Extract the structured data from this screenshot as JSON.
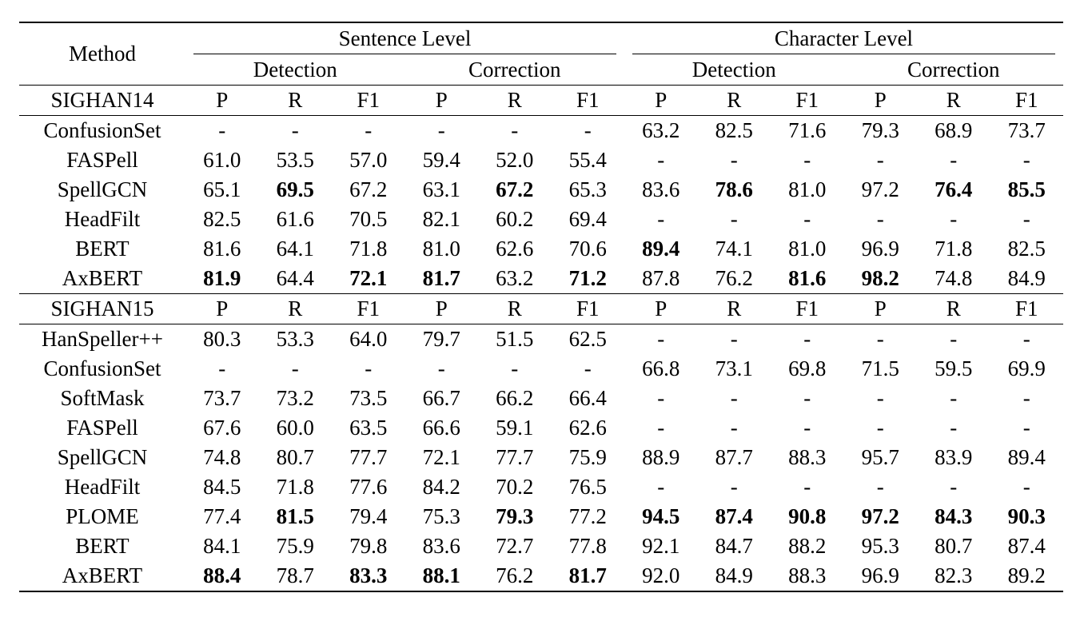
{
  "table": {
    "method_header": "Method",
    "level_groups": [
      "Sentence Level",
      "Character Level"
    ],
    "task_groups": [
      "Detection",
      "Correction",
      "Detection",
      "Correction"
    ],
    "metric_labels": [
      "P",
      "R",
      "F1",
      "P",
      "R",
      "F1",
      "P",
      "R",
      "F1",
      "P",
      "R",
      "F1"
    ],
    "sections": [
      {
        "dataset": "SIGHAN14",
        "rows": [
          {
            "method": "ConfusionSet",
            "values": [
              "-",
              "-",
              "-",
              "-",
              "-",
              "-",
              "63.2",
              "82.5",
              "71.6",
              "79.3",
              "68.9",
              "73.7"
            ],
            "bold": []
          },
          {
            "method": "FASPell",
            "values": [
              "61.0",
              "53.5",
              "57.0",
              "59.4",
              "52.0",
              "55.4",
              "-",
              "-",
              "-",
              "-",
              "-",
              "-"
            ],
            "bold": []
          },
          {
            "method": "SpellGCN",
            "values": [
              "65.1",
              "69.5",
              "67.2",
              "63.1",
              "67.2",
              "65.3",
              "83.6",
              "78.6",
              "81.0",
              "97.2",
              "76.4",
              "85.5"
            ],
            "bold": [
              1,
              4,
              7,
              10,
              11
            ]
          },
          {
            "method": "HeadFilt",
            "values": [
              "82.5",
              "61.6",
              "70.5",
              "82.1",
              "60.2",
              "69.4",
              "-",
              "-",
              "-",
              "-",
              "-",
              "-"
            ],
            "bold": []
          },
          {
            "method": "BERT",
            "values": [
              "81.6",
              "64.1",
              "71.8",
              "81.0",
              "62.6",
              "70.6",
              "89.4",
              "74.1",
              "81.0",
              "96.9",
              "71.8",
              "82.5"
            ],
            "bold": [
              6
            ]
          },
          {
            "method": "AxBERT",
            "values": [
              "81.9",
              "64.4",
              "72.1",
              "81.7",
              "63.2",
              "71.2",
              "87.8",
              "76.2",
              "81.6",
              "98.2",
              "74.8",
              "84.9"
            ],
            "bold": [
              0,
              2,
              3,
              5,
              8,
              9
            ]
          }
        ]
      },
      {
        "dataset": "SIGHAN15",
        "rows": [
          {
            "method": "HanSpeller++",
            "values": [
              "80.3",
              "53.3",
              "64.0",
              "79.7",
              "51.5",
              "62.5",
              "-",
              "-",
              "-",
              "-",
              "-",
              "-"
            ],
            "bold": []
          },
          {
            "method": "ConfusionSet",
            "values": [
              "-",
              "-",
              "-",
              "-",
              "-",
              "-",
              "66.8",
              "73.1",
              "69.8",
              "71.5",
              "59.5",
              "69.9"
            ],
            "bold": []
          },
          {
            "method": "SoftMask",
            "values": [
              "73.7",
              "73.2",
              "73.5",
              "66.7",
              "66.2",
              "66.4",
              "-",
              "-",
              "-",
              "-",
              "-",
              "-"
            ],
            "bold": []
          },
          {
            "method": "FASPell",
            "values": [
              "67.6",
              "60.0",
              "63.5",
              "66.6",
              "59.1",
              "62.6",
              "-",
              "-",
              "-",
              "-",
              "-",
              "-"
            ],
            "bold": []
          },
          {
            "method": "SpellGCN",
            "values": [
              "74.8",
              "80.7",
              "77.7",
              "72.1",
              "77.7",
              "75.9",
              "88.9",
              "87.7",
              "88.3",
              "95.7",
              "83.9",
              "89.4"
            ],
            "bold": []
          },
          {
            "method": "HeadFilt",
            "values": [
              "84.5",
              "71.8",
              "77.6",
              "84.2",
              "70.2",
              "76.5",
              "-",
              "-",
              "-",
              "-",
              "-",
              "-"
            ],
            "bold": []
          },
          {
            "method": "PLOME",
            "values": [
              "77.4",
              "81.5",
              "79.4",
              "75.3",
              "79.3",
              "77.2",
              "94.5",
              "87.4",
              "90.8",
              "97.2",
              "84.3",
              "90.3"
            ],
            "bold": [
              1,
              4,
              6,
              7,
              8,
              9,
              10,
              11
            ]
          },
          {
            "method": "BERT",
            "values": [
              "84.1",
              "75.9",
              "79.8",
              "83.6",
              "72.7",
              "77.8",
              "92.1",
              "84.7",
              "88.2",
              "95.3",
              "80.7",
              "87.4"
            ],
            "bold": []
          },
          {
            "method": "AxBERT",
            "values": [
              "88.4",
              "78.7",
              "83.3",
              "88.1",
              "76.2",
              "81.7",
              "92.0",
              "84.9",
              "88.3",
              "96.9",
              "82.3",
              "89.2"
            ],
            "bold": [
              0,
              2,
              3,
              5
            ]
          }
        ]
      }
    ]
  }
}
